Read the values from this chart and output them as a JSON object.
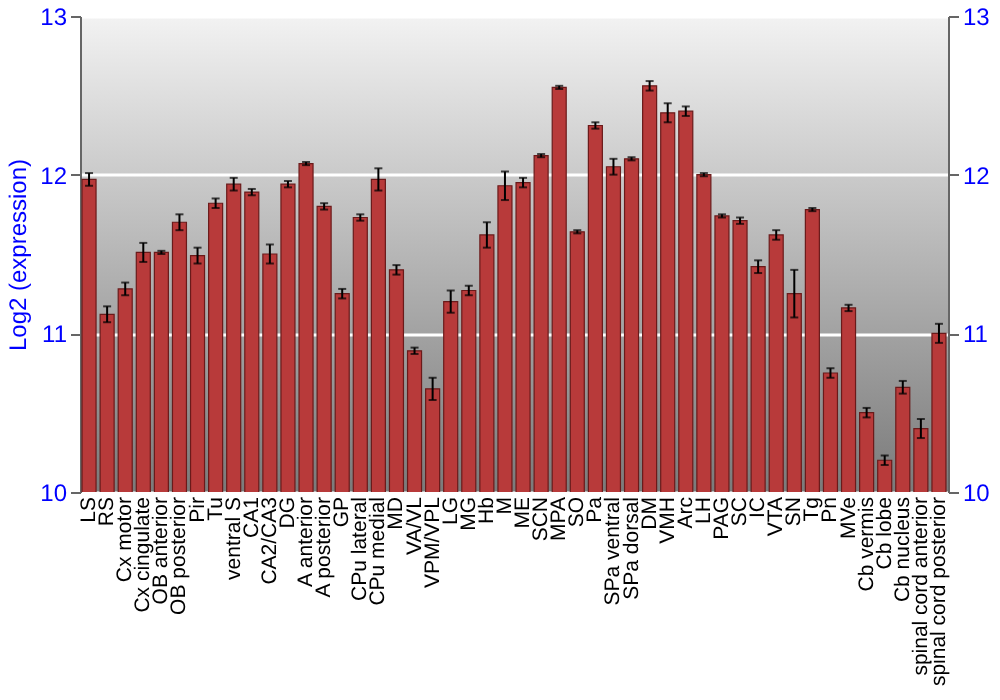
{
  "chart_data": {
    "type": "bar",
    "ylabel": "Log2 (expression)",
    "categories": [
      "LS",
      "RS",
      "Cx motor",
      "Cx cingulate",
      "OB anterior",
      "OB posterior",
      "Pir",
      "Tu",
      "ventral S",
      "CA1",
      "CA2/CA3",
      "DG",
      "A anterior",
      "A posterior",
      "GP",
      "CPu lateral",
      "CPu medial",
      "MD",
      "VA/VL",
      "VPM/VPL",
      "LG",
      "MG",
      "Hb",
      "M",
      "ME",
      "SCN",
      "MPA",
      "SO",
      "Pa",
      "SPa ventral",
      "SPa dorsal",
      "DM",
      "VMH",
      "Arc",
      "LH",
      "PAG",
      "SC",
      "IC",
      "VTA",
      "SN",
      "Tg",
      "Pn",
      "MVe",
      "Cb vermis",
      "Cb lobe",
      "Cb nucleus",
      "spinal cord anterior",
      "spinal cord posterior"
    ],
    "values": [
      11.97,
      11.12,
      11.28,
      11.51,
      11.51,
      11.7,
      11.49,
      11.82,
      11.94,
      11.89,
      11.5,
      11.94,
      12.07,
      11.8,
      11.25,
      11.73,
      11.97,
      11.4,
      10.89,
      10.65,
      11.2,
      11.27,
      11.62,
      11.93,
      11.95,
      12.12,
      12.55,
      11.64,
      12.31,
      12.05,
      12.1,
      12.56,
      12.39,
      12.4,
      12.0,
      11.74,
      11.71,
      11.42,
      11.62,
      11.25,
      11.78,
      10.75,
      11.16,
      10.5,
      10.2,
      10.66,
      10.4,
      11.0
    ],
    "errors": [
      0.04,
      0.05,
      0.04,
      0.06,
      0.01,
      0.05,
      0.05,
      0.03,
      0.04,
      0.02,
      0.06,
      0.02,
      0.01,
      0.02,
      0.03,
      0.02,
      0.07,
      0.03,
      0.02,
      0.07,
      0.07,
      0.03,
      0.08,
      0.09,
      0.03,
      0.01,
      0.01,
      0.01,
      0.02,
      0.05,
      0.01,
      0.03,
      0.06,
      0.03,
      0.01,
      0.01,
      0.02,
      0.04,
      0.03,
      0.15,
      0.01,
      0.03,
      0.02,
      0.03,
      0.03,
      0.04,
      0.06,
      0.06
    ],
    "color": "#b83a3a",
    "ylim": [
      10,
      13
    ],
    "yticks": [
      10,
      11,
      12,
      13
    ],
    "y2lim": [
      10,
      13
    ],
    "y2ticks": [
      10,
      11,
      12,
      13
    ],
    "grid": "y"
  }
}
